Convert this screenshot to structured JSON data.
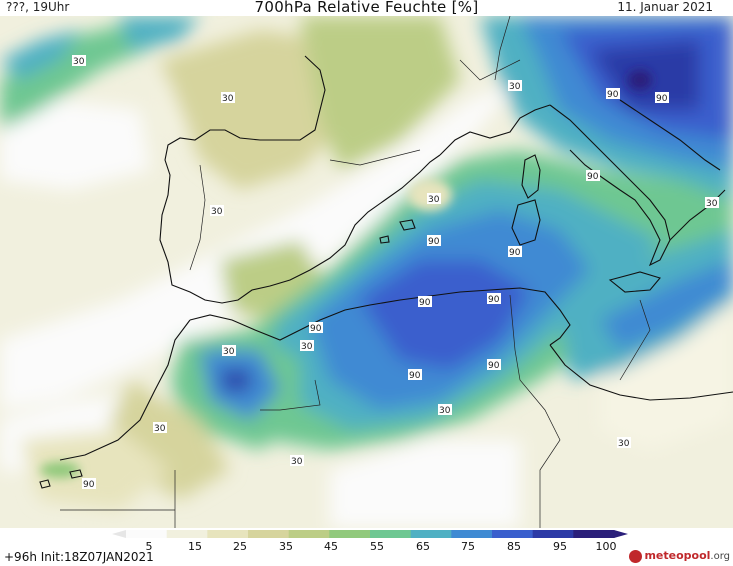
{
  "header": {
    "left_text": "???, 19Uhr",
    "title": "700hPa Relative Feuchte [%]",
    "date": "11. Januar 2021"
  },
  "map": {
    "contour_labels": [
      "30",
      "30",
      "30",
      "30",
      "30",
      "30",
      "30",
      "30",
      "30",
      "30",
      "30",
      "30",
      "90",
      "90",
      "90",
      "90",
      "90",
      "90",
      "90",
      "90",
      "90",
      "90",
      "90"
    ]
  },
  "colorbar": {
    "ticks": [
      "5",
      "15",
      "25",
      "35",
      "45",
      "55",
      "65",
      "75",
      "85",
      "95",
      "100"
    ],
    "colors": [
      "#fbfbfb",
      "#f1f0de",
      "#e7e4bd",
      "#d6d49d",
      "#bccd86",
      "#91c97c",
      "#6ec792",
      "#4fb0c3",
      "#3f8ad3",
      "#3a5fcd",
      "#2c3aa6",
      "#2a1f7a"
    ]
  },
  "footer": {
    "forecast": "+96h",
    "init": "Init:18Z07JAN2021",
    "brand_name": "meteopool",
    "brand_suffix": ".org"
  }
}
